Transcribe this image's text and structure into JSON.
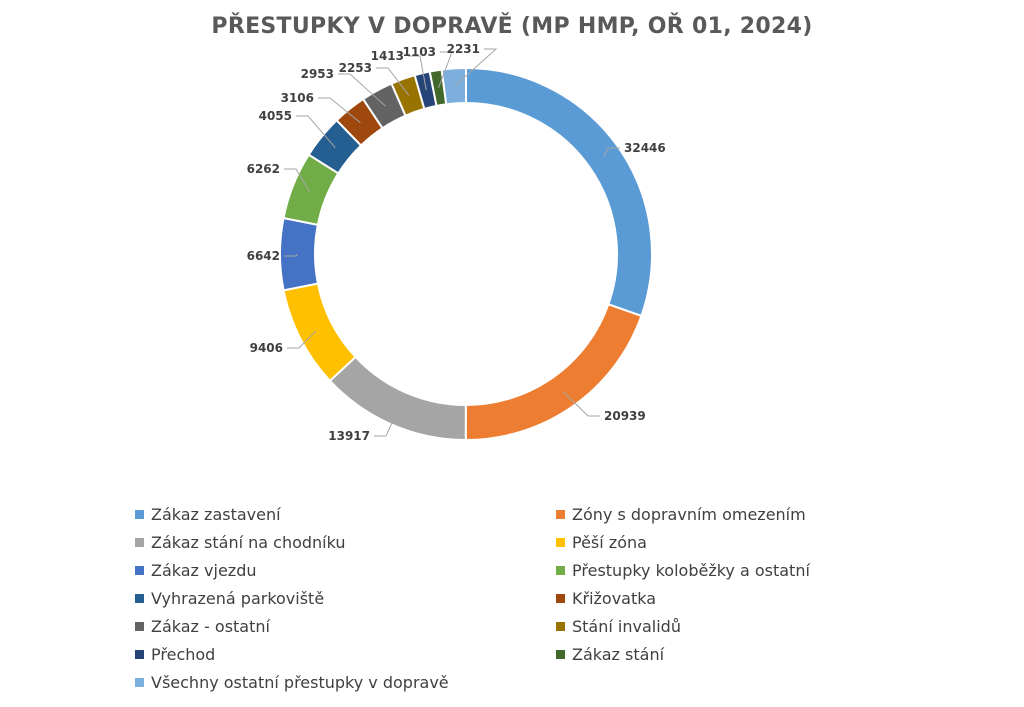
{
  "chart_data": {
    "type": "pie",
    "variant": "donut",
    "title": "PŘESTUPKY V DOPRAVĚ (MP HMP, OŘ 01, 2024)",
    "legend_position": "bottom",
    "series": [
      {
        "label": "Zákaz zastavení",
        "value": 32446,
        "color": "#5B9BD5"
      },
      {
        "label": "Zóny s dopravním omezením",
        "value": 20939,
        "color": "#ED7D31"
      },
      {
        "label": "Zákaz stání na chodníku",
        "value": 13917,
        "color": "#A5A5A5"
      },
      {
        "label": "Pěší zóna",
        "value": 9406,
        "color": "#FFC000"
      },
      {
        "label": "Zákaz vjezdu",
        "value": 6642,
        "color": "#4472C4"
      },
      {
        "label": "Přestupky koloběžky a ostatní",
        "value": 6262,
        "color": "#70AD47"
      },
      {
        "label": "Vyhrazená parkoviště",
        "value": 4055,
        "color": "#255E91"
      },
      {
        "label": "Křižovatka",
        "value": 3106,
        "color": "#9E480E"
      },
      {
        "label": "Zákaz - ostatní",
        "value": 2953,
        "color": "#636363"
      },
      {
        "label": "Stání invalidů",
        "value": 2253,
        "color": "#997300"
      },
      {
        "label": "Přechod",
        "value": 1413,
        "color": "#264478"
      },
      {
        "label": "Zákaz stání",
        "value": 1103,
        "color": "#43682B"
      },
      {
        "label": "Všechny ostatní přestupky v dopravě",
        "value": 2231,
        "color": "#7CAFDD"
      }
    ]
  }
}
